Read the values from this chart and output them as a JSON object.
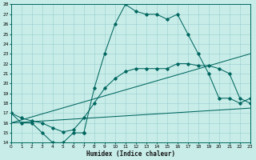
{
  "xlabel": "Humidex (Indice chaleur)",
  "bg_color": "#c8ede8",
  "line_color": "#006660",
  "grid_color": "#99cccc",
  "ylim": [
    14,
    28
  ],
  "xlim": [
    0,
    23
  ],
  "yticks": [
    14,
    15,
    16,
    17,
    18,
    19,
    20,
    21,
    22,
    23,
    24,
    25,
    26,
    27,
    28
  ],
  "xticks": [
    0,
    1,
    2,
    3,
    4,
    5,
    6,
    7,
    8,
    9,
    10,
    11,
    12,
    13,
    14,
    15,
    16,
    17,
    18,
    19,
    20,
    21,
    22,
    23
  ],
  "line1_x": [
    0,
    1,
    2,
    3,
    4,
    5,
    6,
    7,
    7,
    8,
    9,
    10,
    11,
    12,
    13,
    14,
    15,
    16,
    17,
    18,
    19,
    20,
    21,
    22,
    23
  ],
  "line1_y": [
    17,
    16,
    16,
    15,
    14,
    14,
    15,
    15,
    15,
    19.5,
    23,
    26,
    28,
    27.3,
    27,
    27,
    26.5,
    27,
    25,
    23,
    21,
    18.5,
    18.5,
    18,
    18.5
  ],
  "line2_x": [
    0,
    1,
    2,
    3,
    4,
    5,
    6,
    7,
    8,
    9,
    10,
    11,
    12,
    13,
    14,
    15,
    16,
    17,
    18,
    19,
    20,
    21,
    22,
    23
  ],
  "line2_y": [
    17,
    16.5,
    16.2,
    16,
    15.5,
    15.1,
    15.3,
    16.5,
    18,
    19.5,
    20.5,
    21.2,
    21.5,
    21.5,
    21.5,
    21.5,
    22,
    22,
    21.8,
    21.8,
    21.5,
    21,
    18.5,
    18
  ],
  "line3_x": [
    0,
    23
  ],
  "line3_y": [
    16.0,
    23.0
  ],
  "line4_x": [
    0,
    23
  ],
  "line4_y": [
    16.0,
    17.5
  ]
}
